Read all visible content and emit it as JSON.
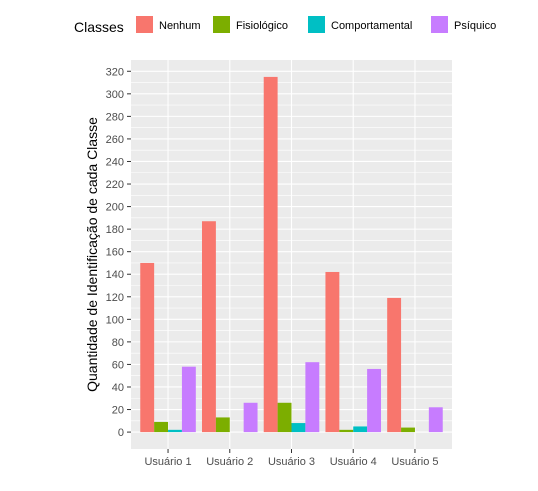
{
  "chart_data": {
    "type": "bar",
    "title": "",
    "xlabel": "",
    "ylabel": "Quantidade de Identificação de cada Classe",
    "categories": [
      "Usuário 1",
      "Usuário 2",
      "Usuário 3",
      "Usuário 4",
      "Usuário 5"
    ],
    "series": [
      {
        "name": "Nenhum",
        "color": "#F8766D",
        "values": [
          150,
          187,
          315,
          142,
          119
        ]
      },
      {
        "name": "Fisiológico",
        "color": "#7CAE00",
        "values": [
          9,
          13,
          26,
          2,
          4
        ]
      },
      {
        "name": "Comportamental",
        "color": "#00BFC4",
        "values": [
          2,
          0,
          8,
          5,
          0
        ]
      },
      {
        "name": "Psíquico",
        "color": "#C77CFF",
        "values": [
          58,
          26,
          62,
          56,
          22
        ]
      }
    ],
    "ylim": [
      -15,
      330
    ],
    "yticks": [
      0,
      20,
      40,
      60,
      80,
      100,
      120,
      140,
      160,
      180,
      200,
      220,
      240,
      260,
      280,
      300,
      320
    ],
    "grid": true,
    "panel_background": "#EBEBEB",
    "legend": {
      "title": "Classes",
      "placement": "top"
    }
  }
}
